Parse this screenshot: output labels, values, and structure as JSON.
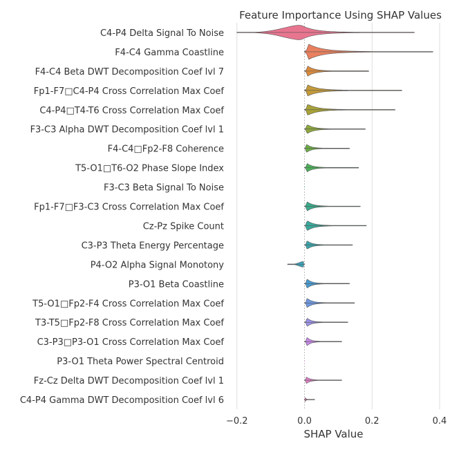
{
  "chart_data": {
    "type": "violin",
    "title": "Feature Importance Using SHAP Values",
    "xlabel": "SHAP Value",
    "ylabel": "",
    "xlim": [
      -0.22,
      0.4
    ],
    "xticks": [
      -0.2,
      0.0,
      0.2,
      0.4
    ],
    "xtick_labels": [
      "−0.2",
      "0.0",
      "0.2",
      "0.4"
    ],
    "grid": true,
    "features": [
      {
        "name": "C4-P4 Delta Signal To Noise",
        "min": -0.2,
        "max": 0.325,
        "peak": -0.01,
        "width": 0.8,
        "color": "#e8758f"
      },
      {
        "name": "F4-C4 Gamma Coastline",
        "min": 0.0,
        "max": 0.38,
        "peak": 0.012,
        "width": 0.85,
        "color": "#e8805f"
      },
      {
        "name": "F4-C4 Beta DWT Decomposition Coef lvl 7",
        "min": 0.0,
        "max": 0.19,
        "peak": 0.01,
        "width": 0.55,
        "color": "#d98b3e"
      },
      {
        "name": "Fp1-F7□C4-P4 Cross Correlation Max Coef",
        "min": 0.0,
        "max": 0.288,
        "peak": 0.01,
        "width": 0.6,
        "color": "#c49a3a"
      },
      {
        "name": "C4-P4□T4-T6 Cross Correlation Max Coef",
        "min": 0.0,
        "max": 0.268,
        "peak": 0.01,
        "width": 0.6,
        "color": "#a9a238"
      },
      {
        "name": "F3-C3 Alpha DWT Decomposition Coef lvl 1",
        "min": 0.0,
        "max": 0.18,
        "peak": 0.008,
        "width": 0.5,
        "color": "#8ea83c"
      },
      {
        "name": "F4-C4□Fp2-F8 Coherence",
        "min": 0.0,
        "max": 0.133,
        "peak": 0.006,
        "width": 0.45,
        "color": "#6cae45"
      },
      {
        "name": "T5-O1□T6-O2 Phase Slope Index",
        "min": 0.0,
        "max": 0.16,
        "peak": 0.008,
        "width": 0.45,
        "color": "#4cb05a"
      },
      {
        "name": "F3-C3 Beta Signal To Noise",
        "min": 0.0,
        "max": 0.001,
        "peak": 0.0,
        "width": 0.0,
        "color": "#3aae76"
      },
      {
        "name": "Fp1-F7□F3-C3 Cross Correlation Max Coef",
        "min": 0.0,
        "max": 0.165,
        "peak": 0.008,
        "width": 0.5,
        "color": "#3aab8b"
      },
      {
        "name": "Cz-Pz Spike Count",
        "min": 0.0,
        "max": 0.183,
        "peak": 0.008,
        "width": 0.55,
        "color": "#3aa99c"
      },
      {
        "name": "C3-P3 Theta Energy Percentage",
        "min": 0.0,
        "max": 0.142,
        "peak": 0.008,
        "width": 0.45,
        "color": "#3ba5ab"
      },
      {
        "name": "P4-O2 Alpha Signal Monotony",
        "min": -0.05,
        "max": 0.0,
        "peak": -0.003,
        "width": 0.3,
        "color": "#3ea1b9"
      },
      {
        "name": "P3-O1 Beta Coastline",
        "min": 0.0,
        "max": 0.133,
        "peak": 0.008,
        "width": 0.5,
        "color": "#4a9bd0"
      },
      {
        "name": "T5-O1□Fp2-F4 Cross Correlation Max Coef",
        "min": 0.0,
        "max": 0.148,
        "peak": 0.008,
        "width": 0.5,
        "color": "#6f97e0"
      },
      {
        "name": "T3-T5□Fp2-F8 Cross Correlation Max Coef",
        "min": 0.0,
        "max": 0.128,
        "peak": 0.008,
        "width": 0.45,
        "color": "#9b93e6"
      },
      {
        "name": "C3-P3□P3-O1 Cross Correlation Max Coef",
        "min": 0.0,
        "max": 0.11,
        "peak": 0.008,
        "width": 0.45,
        "color": "#c58ae6"
      },
      {
        "name": "P3-O1 Theta Power Spectral Centroid",
        "min": 0.0,
        "max": 0.001,
        "peak": 0.0,
        "width": 0.0,
        "color": "#d985d8"
      },
      {
        "name": "Fz-Cz Delta DWT Decomposition Coef lvl 1",
        "min": 0.0,
        "max": 0.11,
        "peak": 0.006,
        "width": 0.35,
        "color": "#e07fc7"
      },
      {
        "name": "C4-P4 Gamma DWT Decomposition Coef lvl 6",
        "min": 0.0,
        "max": 0.03,
        "peak": 0.002,
        "width": 0.2,
        "color": "#e87ab3"
      }
    ]
  }
}
